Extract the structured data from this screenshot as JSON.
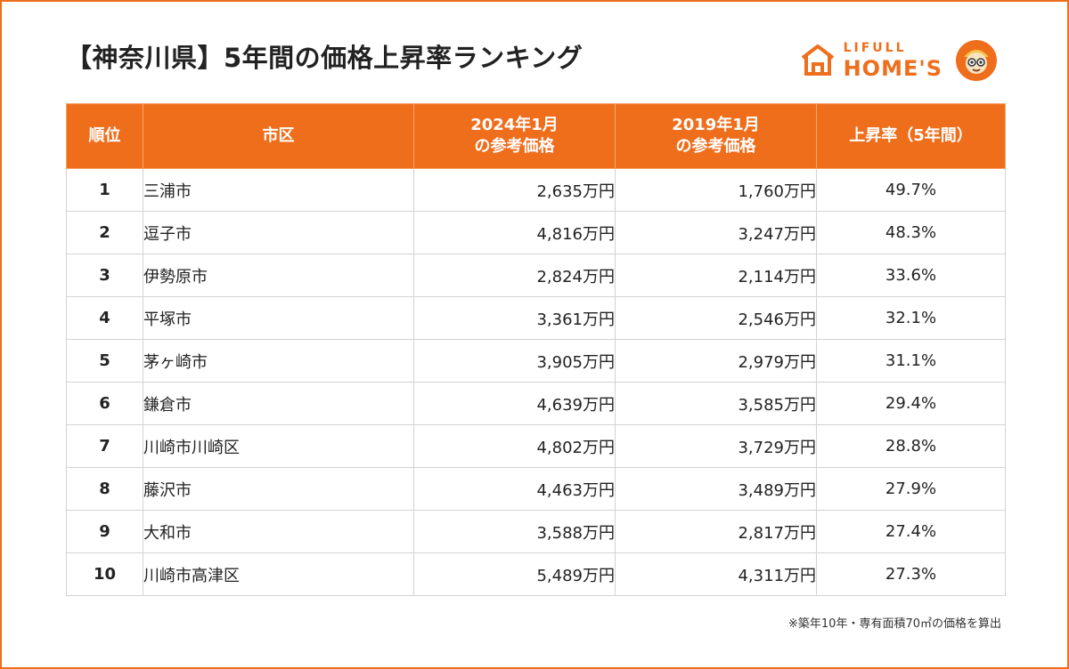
{
  "title": "【神奈川県】5年間の価格上昇率ランキング",
  "logo": {
    "top": "LIFULL",
    "main": "HOME'S"
  },
  "colors": {
    "accent": "#ef6e1c",
    "grid": "#d3d3d3"
  },
  "table": {
    "headers": [
      "順位",
      "市区",
      "2024年1月\nの参考価格",
      "2019年1月\nの参考価格",
      "上昇率（5年間）"
    ],
    "rows": [
      [
        "1",
        "三浦市",
        "2,635万円",
        "1,760万円",
        "49.7%"
      ],
      [
        "2",
        "逗子市",
        "4,816万円",
        "3,247万円",
        "48.3%"
      ],
      [
        "3",
        "伊勢原市",
        "2,824万円",
        "2,114万円",
        "33.6%"
      ],
      [
        "4",
        "平塚市",
        "3,361万円",
        "2,546万円",
        "32.1%"
      ],
      [
        "5",
        "茅ヶ崎市",
        "3,905万円",
        "2,979万円",
        "31.1%"
      ],
      [
        "6",
        "鎌倉市",
        "4,639万円",
        "3,585万円",
        "29.4%"
      ],
      [
        "7",
        "川崎市川崎区",
        "4,802万円",
        "3,729万円",
        "28.8%"
      ],
      [
        "8",
        "藤沢市",
        "4,463万円",
        "3,489万円",
        "27.9%"
      ],
      [
        "9",
        "大和市",
        "3,588万円",
        "2,817万円",
        "27.4%"
      ],
      [
        "10",
        "川崎市高津区",
        "5,489万円",
        "4,311万円",
        "27.3%"
      ]
    ]
  },
  "chart_data": {
    "type": "table",
    "title": "【神奈川県】5年間の価格上昇率ランキング",
    "columns": [
      "順位",
      "市区",
      "2024年1月の参考価格",
      "2019年1月の参考価格",
      "上昇率（5年間）"
    ],
    "rows": [
      {
        "rank": 1,
        "city": "三浦市",
        "price_2024": 2635,
        "price_2019": 1760,
        "rate": 49.7
      },
      {
        "rank": 2,
        "city": "逗子市",
        "price_2024": 4816,
        "price_2019": 3247,
        "rate": 48.3
      },
      {
        "rank": 3,
        "city": "伊勢原市",
        "price_2024": 2824,
        "price_2019": 2114,
        "rate": 33.6
      },
      {
        "rank": 4,
        "city": "平塚市",
        "price_2024": 3361,
        "price_2019": 2546,
        "rate": 32.1
      },
      {
        "rank": 5,
        "city": "茅ヶ崎市",
        "price_2024": 3905,
        "price_2019": 2979,
        "rate": 31.1
      },
      {
        "rank": 6,
        "city": "鎌倉市",
        "price_2024": 4639,
        "price_2019": 3585,
        "rate": 29.4
      },
      {
        "rank": 7,
        "city": "川崎市川崎区",
        "price_2024": 4802,
        "price_2019": 3729,
        "rate": 28.8
      },
      {
        "rank": 8,
        "city": "藤沢市",
        "price_2024": 4463,
        "price_2019": 3489,
        "rate": 27.9
      },
      {
        "rank": 9,
        "city": "大和市",
        "price_2024": 3588,
        "price_2019": 2817,
        "rate": 27.4
      },
      {
        "rank": 10,
        "city": "川崎市高津区",
        "price_2024": 5489,
        "price_2019": 4311,
        "rate": 27.3
      }
    ]
  },
  "note": "※築年10年・専有面積70㎡の価格を算出"
}
